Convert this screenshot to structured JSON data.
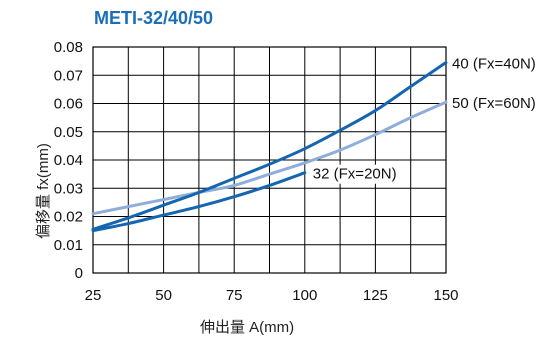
{
  "chart_data": {
    "type": "line",
    "title": "METI-32/40/50",
    "xlabel": "伸出量 A(mm)",
    "ylabel": "偏移量 fx(mm)",
    "xlim": [
      25,
      150
    ],
    "ylim": [
      0,
      0.08
    ],
    "xticks": [
      25,
      50,
      75,
      100,
      125,
      150
    ],
    "xtick_labels": [
      "25",
      "50",
      "75",
      "100",
      "125",
      "150"
    ],
    "yticks": [
      0,
      0.01,
      0.02,
      0.03,
      0.04,
      0.05,
      0.06,
      0.07,
      0.08
    ],
    "ytick_labels": [
      "0",
      "0.01",
      "0.02",
      "0.03",
      "0.04",
      "0.05",
      "0.06",
      "0.07",
      "0.08"
    ],
    "grid": true,
    "legend": "none",
    "colors": {
      "title": "#1c6fb7",
      "dark_series": "#1565b0",
      "light_series": "#8eaed9"
    },
    "series": [
      {
        "name": "40 (Fx=40N)",
        "color": "#1565b0",
        "x": [
          25,
          37.5,
          50,
          62.5,
          75,
          87.5,
          100,
          112.5,
          125,
          137.5,
          150
        ],
        "y": [
          0.0155,
          0.0195,
          0.024,
          0.0285,
          0.0335,
          0.0385,
          0.044,
          0.0505,
          0.0575,
          0.066,
          0.0745
        ]
      },
      {
        "name": "50 (Fx=60N)",
        "color": "#8eaed9",
        "x": [
          25,
          37.5,
          50,
          62.5,
          75,
          87.5,
          100,
          112.5,
          125,
          137.5,
          150
        ],
        "y": [
          0.021,
          0.0235,
          0.026,
          0.0285,
          0.031,
          0.035,
          0.039,
          0.0435,
          0.049,
          0.055,
          0.0605
        ]
      },
      {
        "name": "32 (Fx=20N)",
        "color": "#1565b0",
        "x": [
          25,
          37.5,
          50,
          62.5,
          75,
          87.5,
          100
        ],
        "y": [
          0.015,
          0.0175,
          0.0205,
          0.0235,
          0.027,
          0.031,
          0.0355
        ]
      }
    ]
  }
}
